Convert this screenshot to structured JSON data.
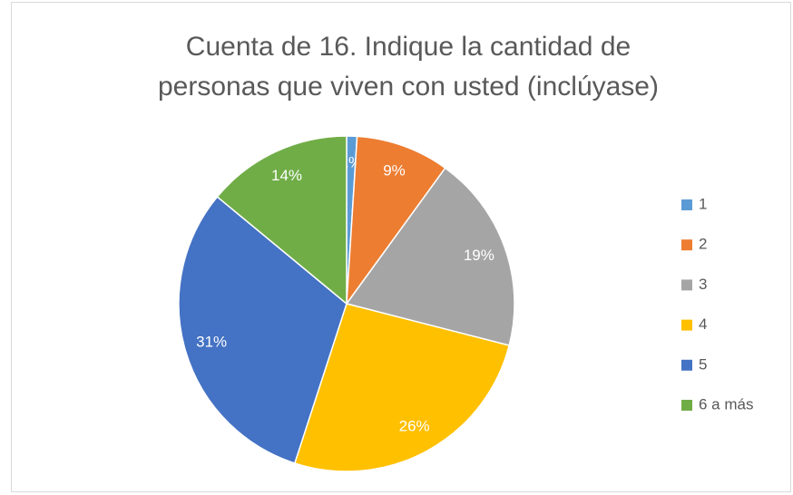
{
  "chart_data": {
    "type": "pie",
    "title": "Cuenta de 16. Indique la cantidad de personas que viven con usted (inclúyase)",
    "categories": [
      "1",
      "2",
      "3",
      "4",
      "5",
      "6 a más"
    ],
    "values": [
      1,
      9,
      19,
      26,
      31,
      14
    ],
    "value_labels": [
      "1%",
      "9%",
      "19%",
      "26%",
      "31%",
      "14%"
    ],
    "colors": [
      "#5b9bd5",
      "#ed7d31",
      "#a5a5a5",
      "#ffc000",
      "#4472c4",
      "#70ad47"
    ],
    "legend": "right"
  }
}
